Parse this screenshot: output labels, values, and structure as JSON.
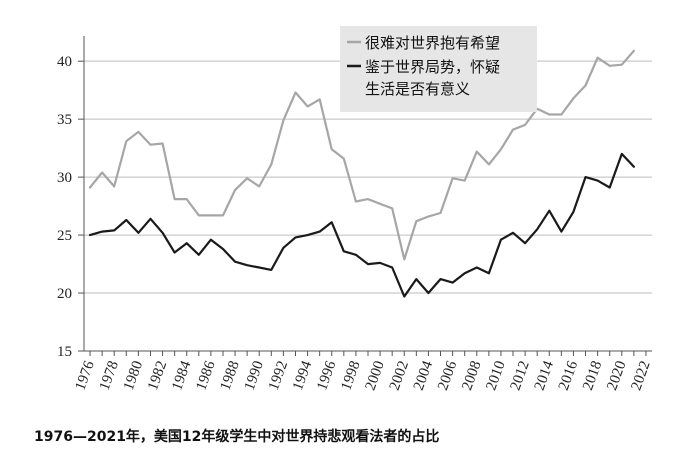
{
  "caption": "1976—2021年，美国12年级学生中对世界持悲观看法者的占比",
  "chart_data": {
    "type": "line",
    "title": "",
    "xlabel": "",
    "ylabel": "",
    "ylim": [
      15,
      42
    ],
    "xlim": [
      1975.5,
      2022.5
    ],
    "yticks": [
      15,
      20,
      25,
      30,
      35,
      40
    ],
    "xtick_labels": [
      "1976",
      "1978",
      "1980",
      "1982",
      "1984",
      "1986",
      "1988",
      "1990",
      "1992",
      "1994",
      "1996",
      "1998",
      "2000",
      "2002",
      "2004",
      "2006",
      "2008",
      "2010",
      "2012",
      "2014",
      "2016",
      "2018",
      "2020",
      "2022"
    ],
    "x": [
      1976,
      1977,
      1978,
      1979,
      1980,
      1981,
      1982,
      1983,
      1984,
      1985,
      1986,
      1987,
      1988,
      1989,
      1990,
      1991,
      1992,
      1993,
      1994,
      1995,
      1996,
      1997,
      1998,
      1999,
      2000,
      2001,
      2002,
      2003,
      2004,
      2005,
      2006,
      2007,
      2008,
      2009,
      2010,
      2011,
      2012,
      2013,
      2014,
      2015,
      2016,
      2017,
      2018,
      2019,
      2020,
      2021,
      2022
    ],
    "series": [
      {
        "name": "很难对世界抱有希望",
        "color": "#a6a6a6",
        "values": [
          29.1,
          30.4,
          29.2,
          33.1,
          33.9,
          32.8,
          32.9,
          28.1,
          28.1,
          26.7,
          26.7,
          26.7,
          28.9,
          29.9,
          29.2,
          31.1,
          34.9,
          37.3,
          36.1,
          36.7,
          32.4,
          31.6,
          27.9,
          28.1,
          27.7,
          27.3,
          22.9,
          26.2,
          26.6,
          26.9,
          29.9,
          29.7,
          32.2,
          31.1,
          32.4,
          34.1,
          34.5,
          35.9,
          35.4,
          35.4,
          36.8,
          37.9,
          40.3,
          39.6,
          39.7,
          40.9,
          null
        ]
      },
      {
        "name": "鉴于世界局势，怀疑生活是否有意义",
        "color": "#1a1a1a",
        "values": [
          25.0,
          25.3,
          25.4,
          26.3,
          25.2,
          26.4,
          25.2,
          23.5,
          24.3,
          23.3,
          24.6,
          23.8,
          22.7,
          22.4,
          22.2,
          22.0,
          23.9,
          24.8,
          25.0,
          25.3,
          26.1,
          23.6,
          23.3,
          22.5,
          22.6,
          22.2,
          19.7,
          21.2,
          20.0,
          21.2,
          20.9,
          21.7,
          22.2,
          21.7,
          24.6,
          25.2,
          24.3,
          25.5,
          27.1,
          25.3,
          27.0,
          30.0,
          29.7,
          29.1,
          32.0,
          30.9,
          null
        ]
      }
    ],
    "legend": {
      "placement": "top-center",
      "background": "#e6e6e6",
      "lines": [
        [
          "很难对世界抱有希望"
        ],
        [
          "鉴于世界局势，怀疑",
          "生活是否有意义"
        ]
      ]
    },
    "grid": "horizontal"
  }
}
